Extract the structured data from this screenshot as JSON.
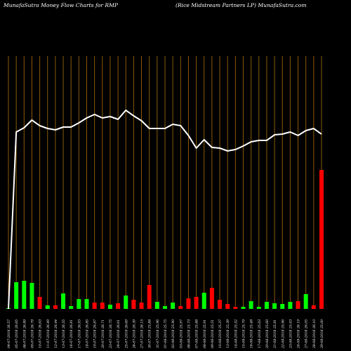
{
  "header": {
    "left": "MunafaSutra  Money Flow  Charts for RMP",
    "right": "(Rice   Midstream Partners LP) MunafaSutra.com"
  },
  "colors": {
    "background": "#000000",
    "grid": "#8b5a0b",
    "up": "#00ff00",
    "down": "#ff0000",
    "line": "#ffffff",
    "label": "#ffffff"
  },
  "chart_data": {
    "type": "bar",
    "series": [
      {
        "name": "",
        "kind": "bar",
        "values": [
          1,
          38,
          40,
          37,
          17,
          5,
          5,
          22,
          4,
          14,
          14,
          9,
          9,
          6,
          8,
          19,
          13,
          9,
          34,
          10,
          4,
          9,
          4,
          15,
          17,
          23,
          30,
          13,
          7,
          3,
          3,
          11,
          3,
          10,
          8,
          7,
          10,
          11,
          21,
          5,
          198
        ]
      },
      {
        "name": "",
        "kind": "line",
        "values": [
          440,
          188,
          182,
          171,
          179,
          183,
          185,
          181,
          181,
          175,
          168,
          163,
          168,
          166,
          170,
          157,
          165,
          172,
          183,
          183,
          183,
          177,
          179,
          193,
          211,
          199,
          210,
          211,
          215,
          213,
          208,
          202,
          200,
          200,
          192,
          191,
          188,
          193,
          186,
          183,
          191
        ]
      }
    ],
    "colors": [
      "up",
      "up",
      "up",
      "up",
      "down",
      "up",
      "down",
      "up",
      "up",
      "up",
      "up",
      "down",
      "down",
      "up",
      "down",
      "up",
      "down",
      "down",
      "down",
      "up",
      "up",
      "up",
      "down",
      "down",
      "down",
      "up",
      "down",
      "down",
      "down",
      "down",
      "up",
      "up",
      "up",
      "up",
      "up",
      "up",
      "up",
      "down",
      "up",
      "down",
      "down"
    ],
    "x_labels": [
      "04-07-2018 26.57",
      "05-07-2018 26.65",
      "06-07-2018 26.89",
      "09-07-2018 26.79",
      "10-07-2018 26.63",
      "11-07-2018 26.49",
      "12-07-2018 26.44",
      "13-07-2018 26.55",
      "16-07-2018 26.81",
      "17-07-2018 26.93",
      "18-07-2018 26.85",
      "19-07-2018 26.87",
      "20-07-2018 26.71",
      "23-07-2018 26.75",
      "24-07-2018 26.61",
      "25-07-2018 26.69",
      "26-07-2018 26.39",
      "27-07-2018 26.15",
      "30-07-2018 25.88",
      "31-07-2018 25.96",
      "01-08-2018 25.75",
      "02-08-2018 25.90",
      "03-08-2018 25.97",
      "06-08-2018 25.73",
      "07-08-2018 25.88",
      "08-08-2018 25.91",
      "09-08-2018 25.51",
      "10-08-2018 25.37",
      "13-08-2018 25.39",
      "14-08-2018 25.52",
      "15-08-2018 25.79",
      "16-08-2018 25.48",
      "17-08-2018 25.63",
      "20-08-2018 25.60",
      "21-08-2018 25.81",
      "22-08-2018 25.96",
      "23-08-2018 25.93",
      "24-08-2018 26.19",
      "27-08-2018 26.05",
      "28-08-2018 26.10",
      "29-08-2018 25.00"
    ]
  }
}
